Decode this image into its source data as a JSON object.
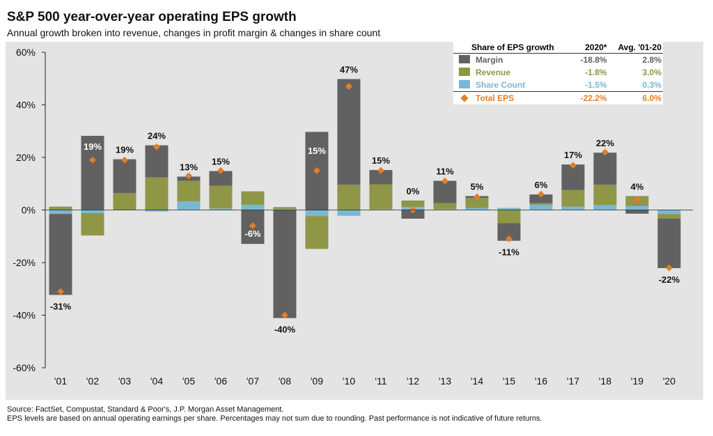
{
  "title": "S&P 500 year-over-year operating EPS growth",
  "subtitle": "Annual growth broken into revenue, changes in profit margin & changes in share count",
  "colors": {
    "margin": "#616161",
    "revenue": "#8f9645",
    "share": "#7ab7d5",
    "total": "#e07f2a"
  },
  "legend_table": {
    "headers": [
      "Share of EPS growth",
      "2020*",
      "Avg. '01-20"
    ],
    "rows": [
      {
        "label": "Margin",
        "v2020": "-18.8%",
        "avg": "2.8%"
      },
      {
        "label": "Revenue",
        "v2020": "-1.8%",
        "avg": "3.0%"
      },
      {
        "label": "Share Count",
        "v2020": "-1.5%",
        "avg": "0.3%"
      },
      {
        "label": "Total EPS",
        "v2020": "-22.2%",
        "avg": "6.0%"
      }
    ]
  },
  "footnotes": [
    "Source: FactSet, Compustat, Standard & Poor's, J.P. Morgan Asset Management.",
    "EPS levels are based on annual operating earnings per share. Percentages may not sum due to rounding. Past performance is not indicative of future returns."
  ],
  "chart_data": {
    "type": "bar",
    "stacked": true,
    "categories": [
      "'01",
      "'02",
      "'03",
      "'04",
      "'05",
      "'06",
      "'07",
      "'08",
      "'09",
      "'10",
      "'11",
      "'12",
      "'13",
      "'14",
      "'15",
      "'16",
      "'17",
      "'18",
      "'19",
      "'20"
    ],
    "ylim": [
      -60,
      60
    ],
    "yticks": [
      -60,
      -40,
      -20,
      0,
      20,
      40,
      60
    ],
    "ytick_labels": [
      "-60%",
      "-40%",
      "-20%",
      "0%",
      "20%",
      "40%",
      "60%"
    ],
    "grid": false,
    "legend": "top-right",
    "series": [
      {
        "name": "Share Count",
        "values": [
          -1.5,
          -1.2,
          0.1,
          -0.6,
          3.3,
          0.6,
          2.0,
          0.3,
          -2.3,
          -2.2,
          0.4,
          1.2,
          0.4,
          0.8,
          0.8,
          2.0,
          1.3,
          1.9,
          1.5,
          -1.5
        ]
      },
      {
        "name": "Revenue",
        "values": [
          1.3,
          -8.5,
          6.3,
          12.4,
          7.8,
          8.6,
          5.1,
          0.8,
          -12.5,
          9.6,
          9.4,
          2.4,
          2.2,
          3.8,
          -5.0,
          0.6,
          6.3,
          7.7,
          3.8,
          -1.8
        ]
      },
      {
        "name": "Margin",
        "values": [
          -30.8,
          28.2,
          12.9,
          12.2,
          1.6,
          5.6,
          -12.9,
          -41.1,
          29.7,
          40.2,
          5.4,
          -3.3,
          8.5,
          0.7,
          -6.7,
          3.3,
          9.7,
          12.2,
          -1.4,
          -18.8
        ]
      }
    ],
    "total": {
      "name": "Total EPS",
      "values": [
        -31,
        19,
        19,
        24,
        13,
        15,
        -6,
        -40,
        15,
        47,
        15,
        0,
        11,
        5,
        -11,
        6,
        17,
        22,
        4,
        -22
      ],
      "labels": [
        "-31%",
        "19%",
        "19%",
        "24%",
        "13%",
        "15%",
        "-6%",
        "-40%",
        "15%",
        "47%",
        "15%",
        "0%",
        "11%",
        "5%",
        "-11%",
        "6%",
        "17%",
        "22%",
        "4%",
        "-22%"
      ]
    }
  }
}
